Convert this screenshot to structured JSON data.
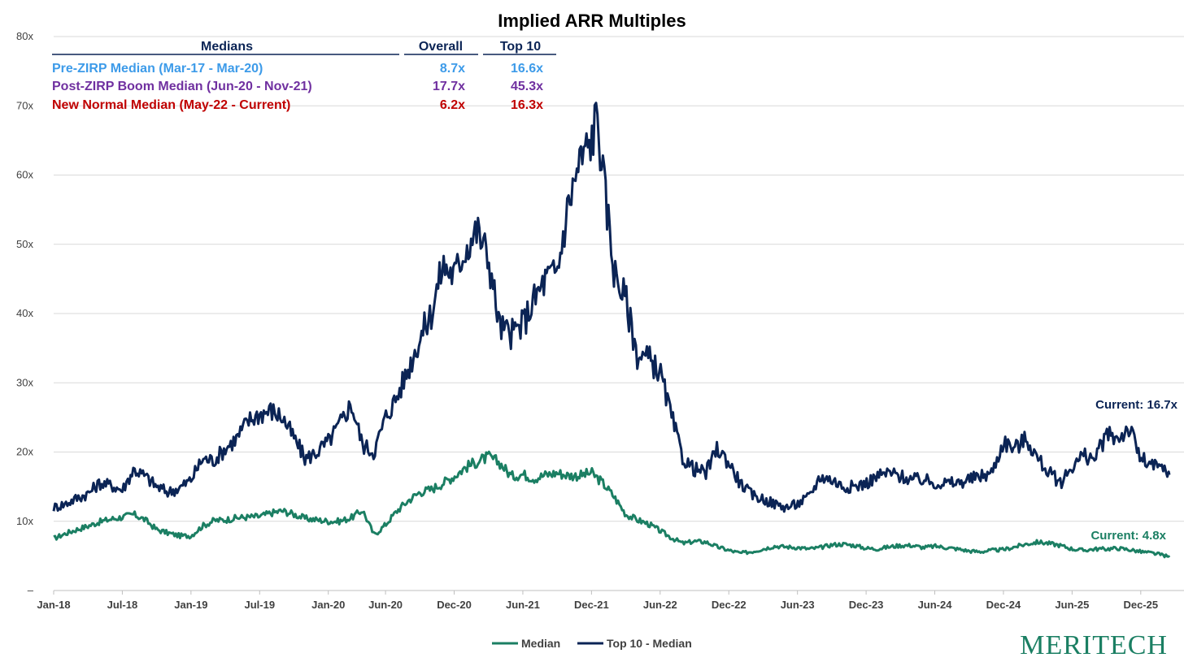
{
  "chart_data": {
    "type": "line",
    "title": "Implied ARR Multiples",
    "xlabel": "",
    "ylabel": "",
    "ylim": [
      0,
      80
    ],
    "y_ticks": [
      "–",
      "10x",
      "20x",
      "30x",
      "40x",
      "50x",
      "60x",
      "70x",
      "80x"
    ],
    "x_tick_labels": [
      "Jan-18",
      "Jul-18",
      "Jan-19",
      "Jul-19",
      "Jan-20",
      "Jun-20",
      "Dec-20",
      "Jun-21",
      "Dec-21",
      "Jun-22",
      "Dec-22",
      "Jun-23",
      "Dec-23",
      "Jun-24",
      "Dec-24",
      "Jun-25",
      "Dec-25"
    ],
    "x_axis_months": "months since Jan-18 (0 = Jan-18)",
    "x_range": [
      0,
      97.5
    ],
    "series": [
      {
        "name": "Median",
        "color": "#1b7f63",
        "x": [
          0,
          1,
          2,
          3,
          4,
          5,
          6,
          7,
          8,
          9,
          10,
          11,
          12,
          13,
          14,
          15,
          16,
          17,
          18,
          19,
          20,
          21,
          22,
          23,
          24,
          25,
          26,
          27,
          28,
          29,
          30,
          31,
          32,
          33,
          34,
          35,
          36,
          37,
          38,
          39,
          40,
          41,
          42,
          43,
          44,
          45,
          46,
          47,
          48,
          49,
          50,
          51,
          52,
          53,
          54,
          55,
          56,
          57,
          58,
          59,
          60,
          61,
          62,
          63,
          64,
          65,
          66,
          67,
          68,
          69,
          70,
          71,
          72,
          73,
          74,
          75,
          76,
          77,
          78,
          79,
          80,
          81,
          82,
          83,
          84,
          85,
          86,
          87,
          88,
          89,
          90,
          91,
          92,
          93,
          94,
          95,
          96,
          97,
          97.5
        ],
        "values": [
          7.5,
          8.2,
          8.8,
          9.3,
          9.9,
          10.3,
          10.6,
          11.0,
          10.2,
          8.8,
          8.3,
          7.9,
          7.9,
          9.3,
          10.1,
          10.2,
          10.5,
          10.6,
          10.7,
          11.2,
          11.5,
          11.0,
          10.4,
          10.2,
          10.0,
          10.0,
          10.5,
          11.6,
          8.0,
          9.5,
          11.5,
          13.0,
          14.2,
          14.6,
          15.5,
          16.5,
          17.8,
          18.6,
          19.3,
          18.4,
          16.5,
          16.8,
          16.2,
          16.7,
          17.0,
          16.6,
          16.6,
          17.0,
          15.5,
          13.5,
          11.0,
          10.2,
          9.6,
          8.6,
          7.6,
          6.8,
          7.1,
          7.0,
          6.3,
          5.8,
          5.4,
          5.6,
          6.0,
          6.4,
          6.3,
          6.2,
          6.0,
          6.2,
          6.6,
          6.7,
          6.5,
          6.1,
          6.0,
          6.3,
          6.5,
          6.5,
          6.2,
          6.4,
          6.2,
          6.0,
          5.7,
          5.6,
          5.8,
          5.9,
          6.3,
          6.7,
          7.0,
          6.8,
          6.5,
          6.0,
          5.8,
          6.0,
          6.0,
          6.1,
          5.9,
          5.6,
          5.4,
          5.1,
          4.8
        ]
      },
      {
        "name": "Top 10 - Median",
        "color": "#0b2455",
        "x": [
          0,
          1,
          2,
          3,
          4,
          5,
          6,
          7,
          8,
          9,
          10,
          11,
          12,
          13,
          14,
          15,
          16,
          17,
          18,
          19,
          20,
          21,
          22,
          23,
          24,
          25,
          26,
          27,
          28,
          29,
          30,
          31,
          32,
          33,
          34,
          35,
          36,
          37,
          38,
          39,
          40,
          41,
          42,
          43,
          44,
          45,
          46,
          47,
          47.5,
          48,
          49,
          50,
          51,
          52,
          53,
          54,
          55,
          56,
          57,
          58,
          59,
          60,
          61,
          62,
          63,
          64,
          65,
          66,
          67,
          68,
          69,
          70,
          71,
          72,
          73,
          74,
          75,
          76,
          77,
          78,
          79,
          80,
          81,
          82,
          83,
          84,
          85,
          86,
          87,
          88,
          89,
          90,
          91,
          92,
          93,
          94,
          95,
          96,
          97,
          97.5
        ],
        "values": [
          12.0,
          12.5,
          13.3,
          14.0,
          15.5,
          15.2,
          14.5,
          17.5,
          16.5,
          15.0,
          14.2,
          14.8,
          16.0,
          19.0,
          18.8,
          20.5,
          22.0,
          24.5,
          25.5,
          26.0,
          25.0,
          22.0,
          19.0,
          20.0,
          21.5,
          24.0,
          27.0,
          21.0,
          20.0,
          25.0,
          28.0,
          32.0,
          36.5,
          40.0,
          47.0,
          45.5,
          49.5,
          52.0,
          48.0,
          38.0,
          37.0,
          38.5,
          42.0,
          45.0,
          46.0,
          56.0,
          62.0,
          65.0,
          69.0,
          60.0,
          46.0,
          42.0,
          34.0,
          33.5,
          31.5,
          25.0,
          19.0,
          17.5,
          17.0,
          20.5,
          18.5,
          15.5,
          13.8,
          13.2,
          12.5,
          12.0,
          12.5,
          13.5,
          16.5,
          16.0,
          15.0,
          15.0,
          15.5,
          16.5,
          17.0,
          16.5,
          16.0,
          16.0,
          15.5,
          15.5,
          15.5,
          16.0,
          16.5,
          17.0,
          21.5,
          20.5,
          22.0,
          19.0,
          17.0,
          15.5,
          18.0,
          19.5,
          19.0,
          22.5,
          22.0,
          23.5,
          19.0,
          18.0,
          17.5,
          16.7
        ]
      }
    ],
    "annotations": [
      {
        "text": "Current: 16.7x",
        "series": "Top 10 - Median",
        "color": "#0b2455"
      },
      {
        "text": "Current: 4.8x",
        "series": "Median",
        "color": "#1b7f63"
      }
    ],
    "legend": {
      "placement": "bottom-center",
      "entries": [
        "Median",
        "Top 10 - Median"
      ]
    },
    "grid": true
  },
  "medians_table": {
    "headers": {
      "label": "Medians",
      "overall": "Overall",
      "top10": "Top 10"
    },
    "rows": [
      {
        "label": "Pre-ZIRP Median (Mar-17 - Mar-20)",
        "overall": "8.7x",
        "top10": "16.6x",
        "color": "#3d9be9"
      },
      {
        "label": "Post-ZIRP Boom Median (Jun-20 - Nov-21)",
        "overall": "17.7x",
        "top10": "45.3x",
        "color": "#7030a0"
      },
      {
        "label": "New Normal Median (May-22 - Current)",
        "overall": "6.2x",
        "top10": "16.3x",
        "color": "#c00000"
      }
    ]
  },
  "brand": {
    "name": "MERITECH",
    "color": "#1b7f63"
  },
  "colors": {
    "title": "#0b2455",
    "grid": "#d9d9d9",
    "axis_text": "#404040"
  }
}
